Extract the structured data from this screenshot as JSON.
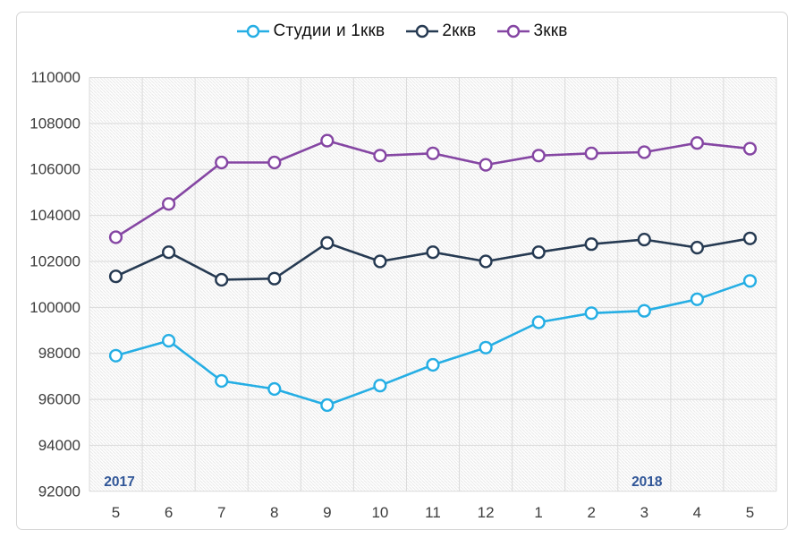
{
  "chart_data": {
    "type": "line",
    "title": "",
    "xlabel": "",
    "ylabel": "",
    "categories": [
      "5",
      "6",
      "7",
      "8",
      "9",
      "10",
      "11",
      "12",
      "1",
      "2",
      "3",
      "4",
      "5"
    ],
    "series": [
      {
        "name": "Студии и 1ккв",
        "color": "#25AEE4",
        "values": [
          97900,
          98550,
          96800,
          96450,
          95750,
          96600,
          97500,
          98250,
          99350,
          99750,
          99850,
          100350,
          101150
        ]
      },
      {
        "name": "2ккв",
        "color": "#263A52",
        "values": [
          101350,
          102400,
          101200,
          101250,
          102800,
          102000,
          102400,
          102000,
          102400,
          102750,
          102950,
          102600,
          103000
        ]
      },
      {
        "name": "3ккв",
        "color": "#8546A3",
        "values": [
          103050,
          104500,
          106300,
          106300,
          107250,
          106600,
          106700,
          106200,
          106600,
          106700,
          106750,
          107150,
          106900
        ]
      }
    ],
    "ylim": [
      92000,
      110000
    ],
    "ytick_step": 2000,
    "yticks": [
      92000,
      94000,
      96000,
      98000,
      100000,
      102000,
      104000,
      106000,
      108000,
      110000
    ],
    "grid": true,
    "legend_position": "top",
    "year_labels": [
      {
        "text": "2017",
        "cat_index": 0,
        "dx": 4
      },
      {
        "text": "2018",
        "cat_index": 10,
        "dx": 3
      }
    ]
  },
  "colors": {
    "frame_border": "#d6d6d6",
    "grid": "#dadada",
    "hatch": "#e5e5e5",
    "axis_text": "#3d3d3d",
    "year_text": "#2F5597",
    "marker_fill": "#ffffff"
  }
}
